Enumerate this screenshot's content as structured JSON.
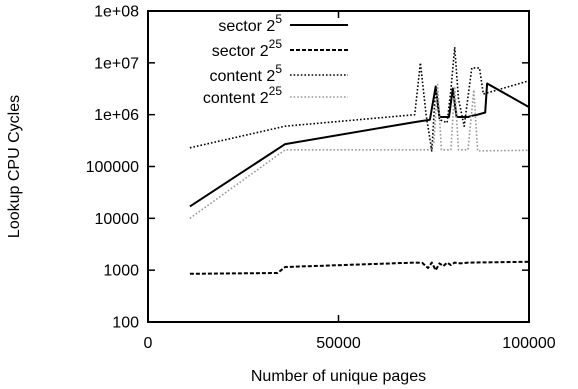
{
  "chart_data": {
    "type": "line",
    "xlabel": "Number of unique pages",
    "ylabel": "Lookup CPU Cycles",
    "xlim": [
      0,
      100000
    ],
    "ylim": [
      100,
      100000000
    ],
    "yscale": "log",
    "grid": false,
    "legend_position": "top-left",
    "x_ticks": [
      {
        "value": 0,
        "label": "0"
      },
      {
        "value": 50000,
        "label": "50000"
      },
      {
        "value": 100000,
        "label": "100000"
      }
    ],
    "y_ticks": [
      {
        "value": 100,
        "label": "100"
      },
      {
        "value": 1000,
        "label": "1000"
      },
      {
        "value": 10000,
        "label": "10000"
      },
      {
        "value": 100000,
        "label": "100000"
      },
      {
        "value": 1000000,
        "label": "1e+06"
      },
      {
        "value": 10000000,
        "label": "1e+07"
      },
      {
        "value": 100000000,
        "label": "1e+08"
      }
    ],
    "series": [
      {
        "name_base": "sector 2",
        "name_exp": "5",
        "style": "solid",
        "color": "#000000",
        "points": [
          [
            11000,
            17000
          ],
          [
            36000,
            270000
          ],
          [
            70000,
            720000
          ],
          [
            74000,
            800000
          ],
          [
            75500,
            3500000
          ],
          [
            76500,
            900000
          ],
          [
            79000,
            900000
          ],
          [
            80000,
            3200000
          ],
          [
            81000,
            900000
          ],
          [
            84000,
            900000
          ],
          [
            85000,
            950000
          ],
          [
            86500,
            1000000
          ],
          [
            88500,
            1100000
          ],
          [
            89000,
            4000000
          ],
          [
            100000,
            1400000
          ]
        ]
      },
      {
        "name_base": "sector 2",
        "name_exp": "25",
        "style": "dashed",
        "color": "#000000",
        "points": [
          [
            11000,
            850
          ],
          [
            34000,
            880
          ],
          [
            36000,
            1150
          ],
          [
            70000,
            1400
          ],
          [
            72000,
            1380
          ],
          [
            73500,
            1100
          ],
          [
            74500,
            1400
          ],
          [
            75500,
            1000
          ],
          [
            76500,
            1350
          ],
          [
            77500,
            1200
          ],
          [
            78500,
            1400
          ],
          [
            79500,
            1250
          ],
          [
            80500,
            1400
          ],
          [
            82000,
            1350
          ],
          [
            84000,
            1400
          ],
          [
            100000,
            1450
          ]
        ]
      },
      {
        "name_base": "content 2",
        "name_exp": "5",
        "style": "dotted",
        "color": "#000000",
        "points": [
          [
            11000,
            230000
          ],
          [
            36000,
            600000
          ],
          [
            70000,
            1000000
          ],
          [
            71500,
            10000000
          ],
          [
            73000,
            1000000
          ],
          [
            74500,
            200000
          ],
          [
            75500,
            3500000
          ],
          [
            76500,
            800000
          ],
          [
            78500,
            700000
          ],
          [
            79500,
            3000000
          ],
          [
            80500,
            20000000
          ],
          [
            81500,
            2000000
          ],
          [
            83000,
            600000
          ],
          [
            84000,
            2200000
          ],
          [
            85000,
            8000000
          ],
          [
            87000,
            8000000
          ],
          [
            88000,
            2500000
          ],
          [
            100000,
            4500000
          ]
        ]
      },
      {
        "name_base": "content 2",
        "name_exp": "25",
        "style": "dotted",
        "color": "#999999",
        "points": [
          [
            11000,
            10000
          ],
          [
            36000,
            210000
          ],
          [
            74000,
            210000
          ],
          [
            75000,
            270000
          ],
          [
            76000,
            3800000
          ],
          [
            77000,
            210000
          ],
          [
            79500,
            210000
          ],
          [
            80500,
            3500000
          ],
          [
            81500,
            210000
          ],
          [
            84000,
            210000
          ],
          [
            85500,
            3000000
          ],
          [
            86500,
            200000
          ],
          [
            100000,
            205000
          ]
        ]
      }
    ]
  }
}
